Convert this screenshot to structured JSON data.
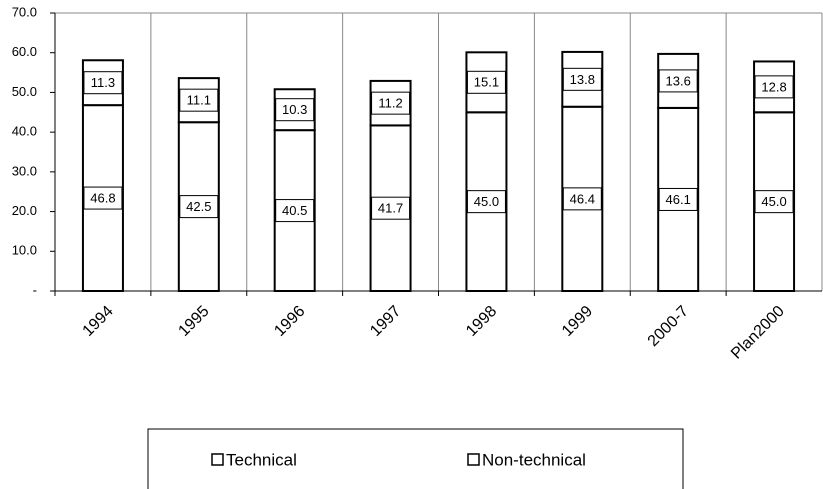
{
  "chart_data": {
    "type": "stacked_bar",
    "categories": [
      "1994",
      "1995",
      "1996",
      "1997",
      "1998",
      "1999",
      "2000-7",
      "Plan2000"
    ],
    "series": [
      {
        "name": "Technical",
        "color": "#ffffff",
        "values": [
          46.8,
          42.5,
          40.5,
          41.7,
          45.0,
          46.4,
          46.1,
          45.0
        ],
        "value_labels": [
          "46.8",
          "42.5",
          "40.5",
          "41.7",
          "45.0",
          "46.4",
          "46.1",
          "45.0"
        ]
      },
      {
        "name": "Non-technical",
        "color": "#ffffff",
        "values": [
          11.3,
          11.1,
          10.3,
          11.2,
          15.1,
          13.8,
          13.6,
          12.8
        ],
        "value_labels": [
          "11.3",
          "11.1",
          "10.3",
          "11.2",
          "15.1",
          "13.8",
          "13.6",
          "12.8"
        ]
      }
    ],
    "ylim": [
      0,
      70
    ],
    "yticks": [
      {
        "value": 0,
        "label": "-"
      },
      {
        "value": 10,
        "label": "10.0"
      },
      {
        "value": 20,
        "label": "20.0"
      },
      {
        "value": 30,
        "label": "30.0"
      },
      {
        "value": 40,
        "label": "40.0"
      },
      {
        "value": 50,
        "label": "50.0"
      },
      {
        "value": 60,
        "label": "60.0"
      },
      {
        "value": 70,
        "label": "70.0"
      }
    ],
    "legend": "bottom"
  }
}
